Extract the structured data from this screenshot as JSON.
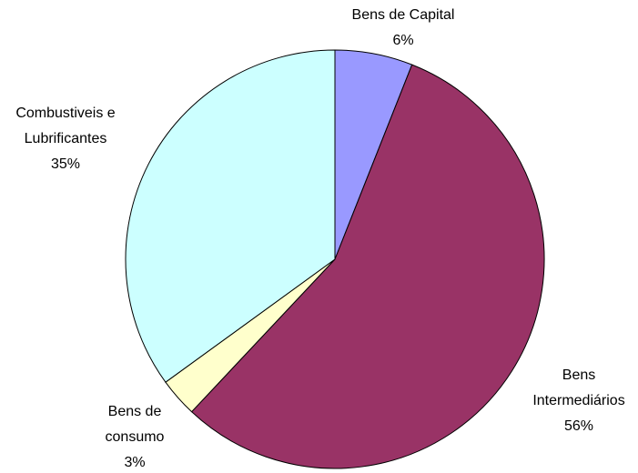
{
  "chart_data": {
    "type": "pie",
    "categories": [
      "Bens de Capital",
      "Bens Intermediários",
      "Bens de consumo",
      "Combustiveis e Lubrificantes"
    ],
    "values": [
      6,
      56,
      3,
      35
    ],
    "value_labels": [
      "6%",
      "56%",
      "3%",
      "35%"
    ],
    "colors": [
      "#9999ff",
      "#993366",
      "#ffffcc",
      "#ccffff"
    ]
  }
}
